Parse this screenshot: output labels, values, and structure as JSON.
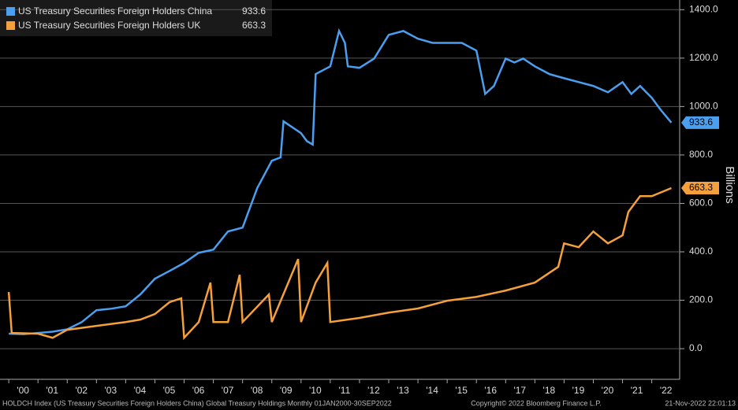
{
  "chart_data": {
    "type": "line",
    "series": [
      {
        "name": "US Treasury Securities Foreign Holders China",
        "color": "#4a9ff0",
        "x": [
          2000.0,
          2000.5,
          2001.0,
          2001.5,
          2002.0,
          2002.5,
          2003.0,
          2003.5,
          2004.0,
          2004.5,
          2005.0,
          2005.5,
          2006.0,
          2006.5,
          2007.0,
          2007.5,
          2008.0,
          2008.5,
          2009.0,
          2009.3,
          2009.4,
          2010.0,
          2010.2,
          2010.4,
          2010.5,
          2011.0,
          2011.3,
          2011.5,
          2011.6,
          2012.0,
          2012.5,
          2013.0,
          2013.5,
          2014.0,
          2014.5,
          2015.0,
          2015.5,
          2016.0,
          2016.3,
          2016.6,
          2017.0,
          2017.3,
          2017.6,
          2018.0,
          2018.5,
          2019.0,
          2019.5,
          2020.0,
          2020.5,
          2021.0,
          2021.3,
          2021.6,
          2022.0,
          2022.3,
          2022.67
        ],
        "values": [
          62,
          60,
          65,
          70,
          80,
          110,
          159,
          165,
          175,
          224,
          289,
          321,
          354,
          396,
          409,
          484,
          500,
          663,
          776,
          790,
          939,
          890,
          857,
          843,
          1134,
          1166,
          1312,
          1263,
          1166,
          1160,
          1198,
          1296,
          1312,
          1280,
          1263,
          1263,
          1263,
          1231,
          1052,
          1085,
          1198,
          1182,
          1198,
          1166,
          1134,
          1117,
          1101,
          1085,
          1059,
          1101,
          1052,
          1085,
          1036,
          987,
          933.6
        ]
      },
      {
        "name": "US Treasury Securities Foreign Holders UK",
        "color": "#f5a03a",
        "x": [
          2000.0,
          2000.1,
          2001.0,
          2001.5,
          2002.0,
          2003.0,
          2004.0,
          2004.5,
          2005.0,
          2005.5,
          2005.9,
          2006.0,
          2006.5,
          2006.9,
          2007.0,
          2007.5,
          2007.9,
          2008.0,
          2008.9,
          2009.0,
          2009.9,
          2010.0,
          2010.5,
          2010.9,
          2011.0,
          2012.0,
          2013.0,
          2014.0,
          2015.0,
          2016.0,
          2017.0,
          2018.0,
          2018.8,
          2019.0,
          2019.5,
          2020.0,
          2020.5,
          2021.0,
          2021.2,
          2021.6,
          2022.0,
          2022.67
        ],
        "values": [
          234,
          65,
          62,
          45,
          78,
          94,
          110,
          120,
          143,
          192,
          208,
          45,
          110,
          273,
          110,
          110,
          305,
          110,
          224,
          110,
          370,
          110,
          273,
          354,
          110,
          127,
          149,
          166,
          198,
          214,
          240,
          273,
          338,
          435,
          419,
          484,
          435,
          468,
          565,
          630,
          630,
          663.3
        ]
      }
    ],
    "xlim": [
      1999.7,
      2022.9
    ],
    "xticks": [
      {
        "value": 2000,
        "label": "'00"
      },
      {
        "value": 2001,
        "label": "'01"
      },
      {
        "value": 2002,
        "label": "'02"
      },
      {
        "value": 2003,
        "label": "'03"
      },
      {
        "value": 2004,
        "label": "'04"
      },
      {
        "value": 2005,
        "label": "'05"
      },
      {
        "value": 2006,
        "label": "'06"
      },
      {
        "value": 2007,
        "label": "'07"
      },
      {
        "value": 2008,
        "label": "'08"
      },
      {
        "value": 2009,
        "label": "'09"
      },
      {
        "value": 2010,
        "label": "'10"
      },
      {
        "value": 2011,
        "label": "'11"
      },
      {
        "value": 2012,
        "label": "'12"
      },
      {
        "value": 2013,
        "label": "'13"
      },
      {
        "value": 2014,
        "label": "'14"
      },
      {
        "value": 2015,
        "label": "'15"
      },
      {
        "value": 2016,
        "label": "'16"
      },
      {
        "value": 2017,
        "label": "'17"
      },
      {
        "value": 2018,
        "label": "'18"
      },
      {
        "value": 2019,
        "label": "'19"
      },
      {
        "value": 2020,
        "label": "'20"
      },
      {
        "value": 2021,
        "label": "'21"
      },
      {
        "value": 2022,
        "label": "'22"
      }
    ],
    "ylim": [
      -120,
      1440
    ],
    "yticks": [
      {
        "value": 0,
        "label": "0.0"
      },
      {
        "value": 200,
        "label": "200.0"
      },
      {
        "value": 400,
        "label": "400.0"
      },
      {
        "value": 600,
        "label": "600.0"
      },
      {
        "value": 800,
        "label": "800.0"
      },
      {
        "value": 1000,
        "label": "1000.0"
      },
      {
        "value": 1200,
        "label": "1200.0"
      },
      {
        "value": 1400,
        "label": "1400.0"
      }
    ],
    "y_label": "Billions",
    "grid": true,
    "footer_left": "HOLDCH Index (US Treasury Securities Foreign Holders China) Global Treasury Holdings  Monthly 01JAN2000-30SEP2022",
    "footer_center": "Copyright© 2022 Bloomberg Finance L.P.",
    "footer_right": "21-Nov-2022 22:01:13"
  }
}
